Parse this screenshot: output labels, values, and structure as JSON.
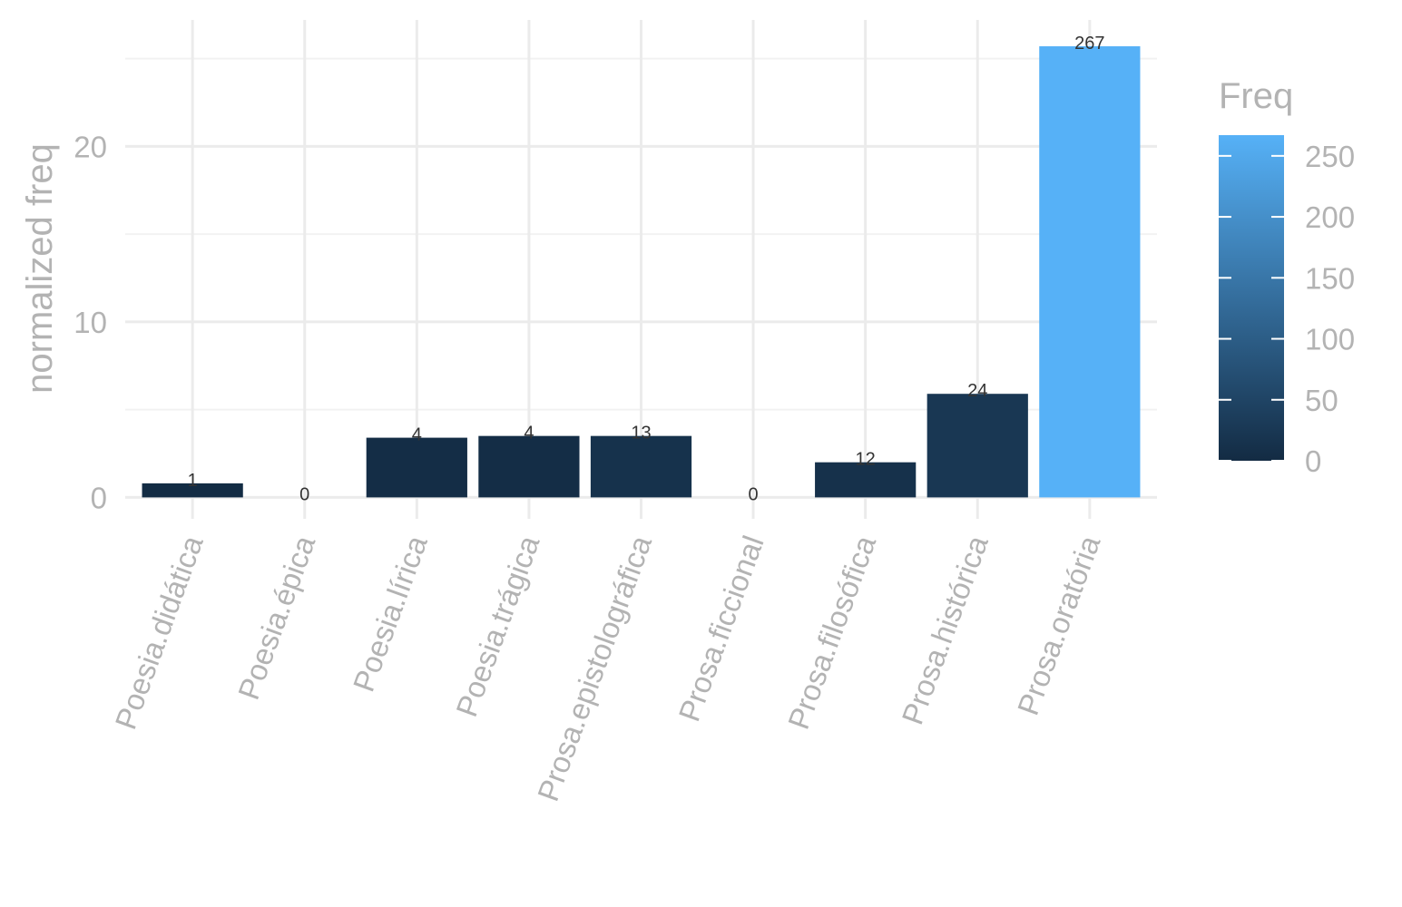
{
  "chart_data": {
    "type": "bar",
    "categories": [
      "Poesia.didática",
      "Poesia.épica",
      "Poesia.lírica",
      "Poesia.trágica",
      "Prosa.epistolográfica",
      "Prosa.ficcional",
      "Prosa.filosófica",
      "Prosa.histórica",
      "Prosa.oratória"
    ],
    "values": [
      0.8,
      0,
      3.4,
      3.5,
      3.5,
      0,
      2.0,
      5.9,
      25.7
    ],
    "freq": [
      1,
      0,
      4,
      4,
      13,
      0,
      12,
      24,
      267
    ],
    "freq_labels": [
      "1",
      "0",
      "4",
      "4",
      "13",
      "0",
      "12",
      "24",
      "267"
    ],
    "ylabel": "normalized freq",
    "xlabel": "",
    "ylim": [
      -0.6,
      27.2
    ],
    "y_ticks": [
      0,
      10,
      20
    ],
    "y_tick_labels": [
      "0",
      "10",
      "20"
    ],
    "y_minor_ticks": [
      5,
      15,
      25
    ],
    "x_tick_rotation_deg": -70,
    "grid": true,
    "legend": {
      "title": "Freq",
      "placement": "right",
      "type": "colorbar",
      "range": [
        0,
        267
      ],
      "ticks": [
        0,
        50,
        100,
        150,
        200,
        250
      ],
      "tick_labels": [
        "0",
        "50",
        "100",
        "150",
        "200",
        "250"
      ],
      "low_color": "#132b43",
      "high_color": "#56b1f7"
    }
  }
}
